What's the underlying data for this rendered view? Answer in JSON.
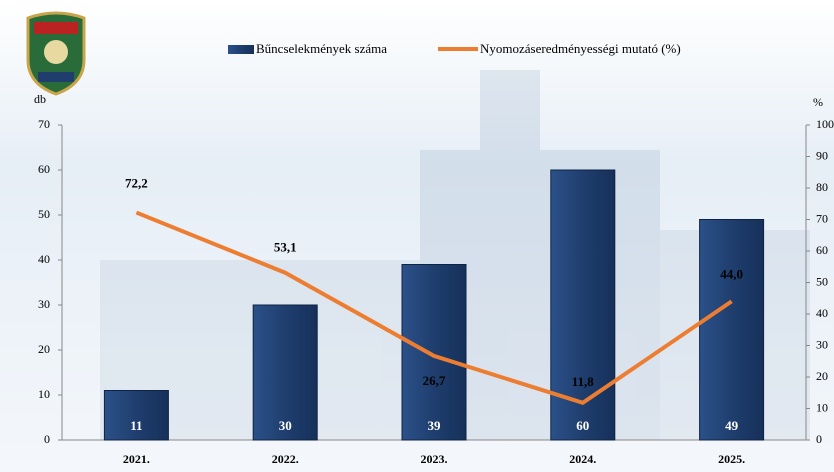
{
  "chart_data": {
    "type": "bar-line",
    "categories": [
      "2021.",
      "2022.",
      "2023.",
      "2024.",
      "2025."
    ],
    "series": [
      {
        "name": "Bűncselekmények száma",
        "type": "bar",
        "color": "#1f3e6e",
        "values": [
          11,
          30,
          39,
          60,
          49
        ]
      },
      {
        "name": "Nyomozáseredményességi mutató (%)",
        "type": "line",
        "axis": "y2",
        "color": "#ed7d31",
        "values": [
          72.2,
          53.1,
          26.7,
          11.8,
          44.0
        ],
        "value_labels": [
          "72,2",
          "53,1",
          "26,7",
          "11,8",
          "44,0"
        ]
      }
    ],
    "y_label": "db",
    "y2_label": "%",
    "ylim": [
      0,
      70
    ],
    "yticks": [
      0,
      10,
      20,
      30,
      40,
      50,
      60,
      70
    ],
    "y2lim": [
      0,
      100
    ],
    "y2ticks": [
      0,
      10,
      20,
      30,
      40,
      50,
      60,
      70,
      80,
      90,
      100
    ],
    "grid": false
  }
}
